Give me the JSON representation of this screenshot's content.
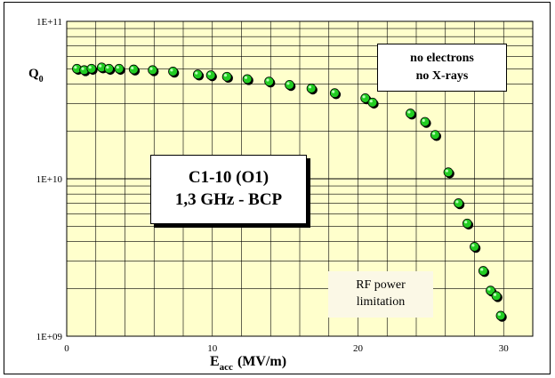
{
  "chart_data": {
    "type": "scatter",
    "xlabel_main": "E",
    "xlabel_sub": "acc",
    "xlabel_unit": "(MV/m)",
    "ylabel_main": "Q",
    "ylabel_sub": "0",
    "x_ticks": [
      "0",
      "10",
      "20",
      "30"
    ],
    "y_ticks": [
      "1E+09",
      "1E+10",
      "1E+11"
    ],
    "xlim": [
      0,
      32
    ],
    "ylim": [
      1000000000,
      100000000000
    ],
    "y_scale": "log",
    "grid": true,
    "plot_background": "#ffffcc",
    "marker_color": "#22cc22",
    "points": [
      {
        "x": 0.7,
        "y": 50000000000.0
      },
      {
        "x": 1.2,
        "y": 49000000000.0
      },
      {
        "x": 1.7,
        "y": 50000000000.0
      },
      {
        "x": 2.4,
        "y": 51000000000.0
      },
      {
        "x": 2.9,
        "y": 50000000000.0
      },
      {
        "x": 3.6,
        "y": 50000000000.0
      },
      {
        "x": 4.6,
        "y": 49500000000.0
      },
      {
        "x": 5.9,
        "y": 49000000000.0
      },
      {
        "x": 7.3,
        "y": 48000000000.0
      },
      {
        "x": 9.0,
        "y": 46000000000.0
      },
      {
        "x": 9.9,
        "y": 45500000000.0
      },
      {
        "x": 11.0,
        "y": 44500000000.0
      },
      {
        "x": 12.4,
        "y": 43000000000.0
      },
      {
        "x": 13.9,
        "y": 41500000000.0
      },
      {
        "x": 15.3,
        "y": 39500000000.0
      },
      {
        "x": 16.8,
        "y": 37500000000.0
      },
      {
        "x": 18.4,
        "y": 35000000000.0
      },
      {
        "x": 20.5,
        "y": 32500000000.0
      },
      {
        "x": 21.0,
        "y": 30500000000.0
      },
      {
        "x": 23.6,
        "y": 26000000000.0
      },
      {
        "x": 24.6,
        "y": 23000000000.0
      },
      {
        "x": 25.3,
        "y": 19000000000.0
      },
      {
        "x": 26.2,
        "y": 11000000000.0
      },
      {
        "x": 26.9,
        "y": 7000000000.0
      },
      {
        "x": 27.5,
        "y": 5200000000.0
      },
      {
        "x": 28.0,
        "y": 3700000000.0
      },
      {
        "x": 28.6,
        "y": 2600000000.0
      },
      {
        "x": 29.1,
        "y": 1950000000.0
      },
      {
        "x": 29.5,
        "y": 1800000000.0
      },
      {
        "x": 29.8,
        "y": 1350000000.0
      }
    ]
  },
  "annotations": {
    "note_line1": "no electrons",
    "note_line2": "no X-rays",
    "id_line1": "C1-10  (O1)",
    "id_line2": "1,3 GHz - BCP",
    "rf_line1": "RF power",
    "rf_line2": "limitation"
  }
}
